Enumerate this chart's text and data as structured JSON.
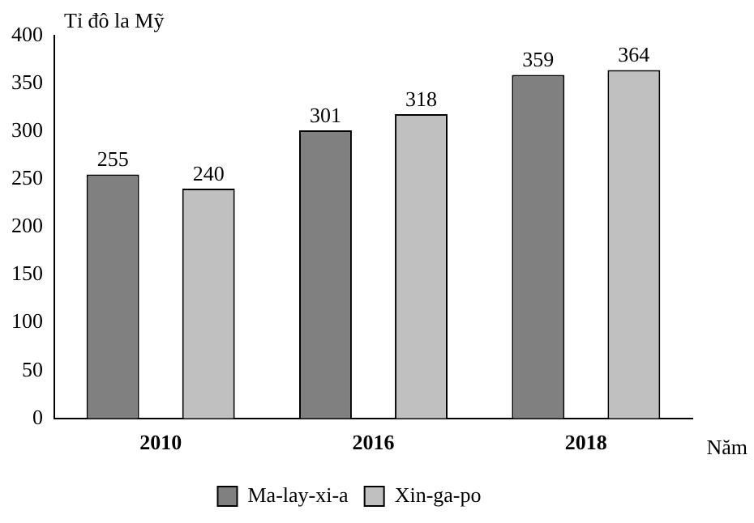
{
  "chart_data": {
    "type": "bar",
    "ylabel": "Tỉ đô la Mỹ",
    "xlabel": "Năm",
    "categories": [
      "2010",
      "2016",
      "2018"
    ],
    "series": [
      {
        "name": "Ma-lay-xi-a",
        "color": "#808080",
        "values": [
          255,
          301,
          359
        ]
      },
      {
        "name": "Xin-ga-po",
        "color": "#c0c0c0",
        "values": [
          240,
          318,
          364
        ]
      }
    ],
    "ylim": [
      0,
      400
    ],
    "yticks": [
      0,
      50,
      100,
      150,
      200,
      250,
      300,
      350,
      400
    ],
    "grid": false,
    "legend": "bottom",
    "data_labels": true
  }
}
